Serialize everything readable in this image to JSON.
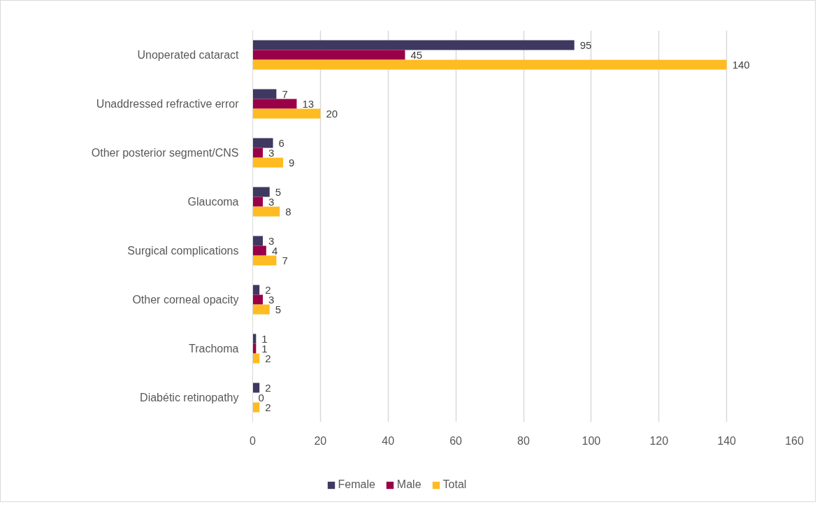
{
  "chart_data": {
    "type": "bar",
    "orientation": "horizontal",
    "categories": [
      "Unoperated cataract",
      "Unaddressed refractive error",
      "Other posterior segment/CNS",
      "Glaucoma",
      "Surgical complications",
      "Other corneal opacity",
      "Trachoma",
      "Diabétic retinopathy"
    ],
    "series": [
      {
        "name": "Female",
        "color": "#3f3860",
        "values": [
          95,
          7,
          6,
          5,
          3,
          2,
          1,
          2
        ]
      },
      {
        "name": "Male",
        "color": "#990048",
        "values": [
          45,
          13,
          3,
          3,
          4,
          3,
          1,
          0
        ]
      },
      {
        "name": "Total",
        "color": "#ffbb22",
        "values": [
          140,
          20,
          9,
          8,
          7,
          5,
          2,
          2
        ]
      }
    ],
    "xlim": [
      0,
      160
    ],
    "xticks": [
      0,
      20,
      40,
      60,
      80,
      100,
      120,
      140,
      160
    ],
    "grid": "x",
    "legend": "bottom",
    "data_labels": true
  }
}
